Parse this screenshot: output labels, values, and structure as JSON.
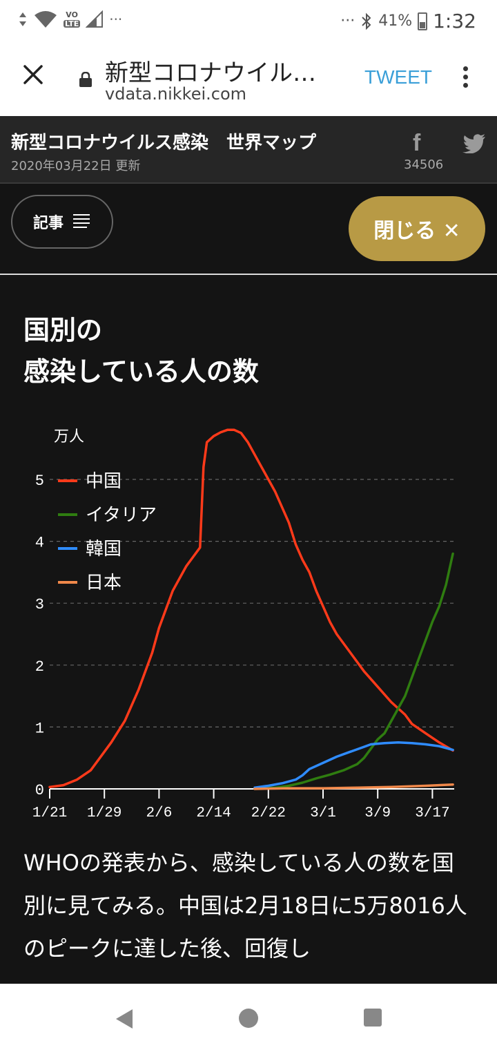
{
  "status": {
    "time": "1:32",
    "battery": "41%",
    "volte": "VO",
    "lte": "LTE",
    "dots": "···"
  },
  "browser": {
    "title": "新型コロナウイル…",
    "url": "vdata.nikkei.com",
    "tweet_label": "TWEET"
  },
  "site": {
    "title": "新型コロナウイルス感染　世界マップ",
    "updated": "2020年03月22日 更新",
    "fb_label": "f",
    "fb_count": "34506",
    "article_button": "記事",
    "close_button": "閉じる ✕"
  },
  "chart_section": {
    "title_line1": "国別の",
    "title_line2": "感染している人の数"
  },
  "chart_data": {
    "type": "line",
    "ylabel": "万人",
    "ylim": [
      0,
      5.5
    ],
    "yticks": [
      0,
      1,
      2,
      3,
      4,
      5
    ],
    "xtick_labels": [
      "1/21",
      "1/29",
      "2/6",
      "2/14",
      "2/22",
      "3/1",
      "3/9",
      "3/17"
    ],
    "xtick_days": [
      0,
      8,
      16,
      24,
      32,
      40,
      48,
      56
    ],
    "x_days_range": [
      0,
      60
    ],
    "grid": true,
    "legend_position": "top-left",
    "series": [
      {
        "name": "中国",
        "color": "#ff3a1a",
        "points": [
          [
            0,
            0.03
          ],
          [
            2,
            0.06
          ],
          [
            4,
            0.15
          ],
          [
            6,
            0.3
          ],
          [
            7,
            0.45
          ],
          [
            9,
            0.75
          ],
          [
            11,
            1.1
          ],
          [
            13,
            1.6
          ],
          [
            15,
            2.2
          ],
          [
            16,
            2.6
          ],
          [
            18,
            3.2
          ],
          [
            20,
            3.6
          ],
          [
            21,
            3.75
          ],
          [
            22,
            3.9
          ],
          [
            22.5,
            5.2
          ],
          [
            23,
            5.6
          ],
          [
            24,
            5.7
          ],
          [
            25,
            5.76
          ],
          [
            26,
            5.8
          ],
          [
            27,
            5.8
          ],
          [
            28,
            5.75
          ],
          [
            29,
            5.6
          ],
          [
            30,
            5.4
          ],
          [
            31,
            5.2
          ],
          [
            32,
            5.0
          ],
          [
            33,
            4.8
          ],
          [
            34,
            4.55
          ],
          [
            35,
            4.3
          ],
          [
            36,
            3.95
          ],
          [
            37,
            3.7
          ],
          [
            38,
            3.5
          ],
          [
            39,
            3.2
          ],
          [
            40,
            2.95
          ],
          [
            41,
            2.7
          ],
          [
            42,
            2.5
          ],
          [
            44,
            2.2
          ],
          [
            46,
            1.9
          ],
          [
            48,
            1.65
          ],
          [
            50,
            1.4
          ],
          [
            52,
            1.2
          ],
          [
            53,
            1.05
          ],
          [
            55,
            0.9
          ],
          [
            57,
            0.75
          ],
          [
            59,
            0.62
          ]
        ]
      },
      {
        "name": "イタリア",
        "color": "#2f7d10",
        "points": [
          [
            30,
            0.01
          ],
          [
            33,
            0.02
          ],
          [
            35,
            0.05
          ],
          [
            37,
            0.1
          ],
          [
            39,
            0.17
          ],
          [
            41,
            0.23
          ],
          [
            43,
            0.3
          ],
          [
            45,
            0.4
          ],
          [
            46,
            0.5
          ],
          [
            47,
            0.65
          ],
          [
            48,
            0.8
          ],
          [
            49,
            0.9
          ],
          [
            50,
            1.1
          ],
          [
            51,
            1.3
          ],
          [
            52,
            1.5
          ],
          [
            53,
            1.8
          ],
          [
            54,
            2.1
          ],
          [
            55,
            2.4
          ],
          [
            56,
            2.7
          ],
          [
            57,
            2.95
          ],
          [
            58,
            3.3
          ],
          [
            59,
            3.8
          ]
        ]
      },
      {
        "name": "韓国",
        "color": "#2f8cff",
        "points": [
          [
            30,
            0.02
          ],
          [
            32,
            0.05
          ],
          [
            34,
            0.09
          ],
          [
            36,
            0.15
          ],
          [
            37,
            0.22
          ],
          [
            38,
            0.32
          ],
          [
            40,
            0.42
          ],
          [
            42,
            0.52
          ],
          [
            44,
            0.6
          ],
          [
            46,
            0.68
          ],
          [
            47,
            0.72
          ],
          [
            49,
            0.74
          ],
          [
            51,
            0.75
          ],
          [
            53,
            0.74
          ],
          [
            55,
            0.72
          ],
          [
            57,
            0.69
          ],
          [
            59,
            0.63
          ]
        ]
      },
      {
        "name": "日本",
        "color": "#f0884a",
        "points": [
          [
            30,
            0.0
          ],
          [
            35,
            0.01
          ],
          [
            40,
            0.01
          ],
          [
            45,
            0.02
          ],
          [
            50,
            0.03
          ],
          [
            55,
            0.05
          ],
          [
            59,
            0.07
          ]
        ]
      }
    ]
  },
  "body": {
    "text": "WHOの発表から、感染している人の数を国別に見てみる。中国は2月18日に5万8016人のピークに達した後、回復し"
  },
  "icons": {
    "close": "close-icon",
    "lock": "lock-icon",
    "more": "more-vert-icon",
    "facebook": "facebook-icon",
    "twitter": "twitter-icon",
    "list": "list-lines-icon",
    "back": "back-icon",
    "home": "home-icon",
    "recent": "recent-apps-icon"
  }
}
